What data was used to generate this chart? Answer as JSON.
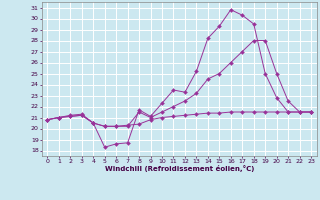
{
  "xlabel": "Windchill (Refroidissement éolien,°C)",
  "background_color": "#cce8f0",
  "grid_color": "#ffffff",
  "line_color": "#993399",
  "xlim": [
    -0.5,
    23.5
  ],
  "ylim": [
    17.5,
    31.5
  ],
  "yticks": [
    18,
    19,
    20,
    21,
    22,
    23,
    24,
    25,
    26,
    27,
    28,
    29,
    30,
    31
  ],
  "xticks": [
    0,
    1,
    2,
    3,
    4,
    5,
    6,
    7,
    8,
    9,
    10,
    11,
    12,
    13,
    14,
    15,
    16,
    17,
    18,
    19,
    20,
    21,
    22,
    23
  ],
  "curve1_x": [
    0,
    1,
    2,
    3,
    4,
    5,
    6,
    7,
    8,
    9,
    10,
    11,
    12,
    13,
    14,
    15,
    16,
    17,
    18,
    19,
    20,
    21,
    22,
    23
  ],
  "curve1_y": [
    20.8,
    21.0,
    21.1,
    21.2,
    20.5,
    20.2,
    20.2,
    20.3,
    20.4,
    20.8,
    21.0,
    21.1,
    21.2,
    21.3,
    21.4,
    21.4,
    21.5,
    21.5,
    21.5,
    21.5,
    21.5,
    21.5,
    21.5,
    21.5
  ],
  "curve2_x": [
    0,
    1,
    2,
    3,
    4,
    5,
    6,
    7,
    8,
    9,
    10,
    11,
    12,
    13,
    14,
    15,
    16,
    17,
    18,
    19,
    20,
    21,
    22,
    23
  ],
  "curve2_y": [
    20.8,
    21.0,
    21.1,
    21.2,
    20.5,
    18.3,
    18.6,
    18.7,
    21.7,
    21.1,
    22.3,
    23.5,
    23.3,
    25.2,
    28.2,
    29.3,
    30.8,
    30.3,
    29.5,
    25.0,
    22.8,
    21.5,
    21.5,
    21.5
  ],
  "curve3_x": [
    0,
    1,
    2,
    3,
    4,
    5,
    6,
    7,
    8,
    9,
    10,
    11,
    12,
    13,
    14,
    15,
    16,
    17,
    18,
    19,
    20,
    21,
    22,
    23
  ],
  "curve3_y": [
    20.8,
    21.0,
    21.2,
    21.3,
    20.5,
    20.2,
    20.2,
    20.2,
    21.5,
    21.0,
    21.5,
    22.0,
    22.5,
    23.2,
    24.5,
    25.0,
    26.0,
    27.0,
    28.0,
    28.0,
    25.0,
    22.5,
    21.5,
    21.5
  ]
}
